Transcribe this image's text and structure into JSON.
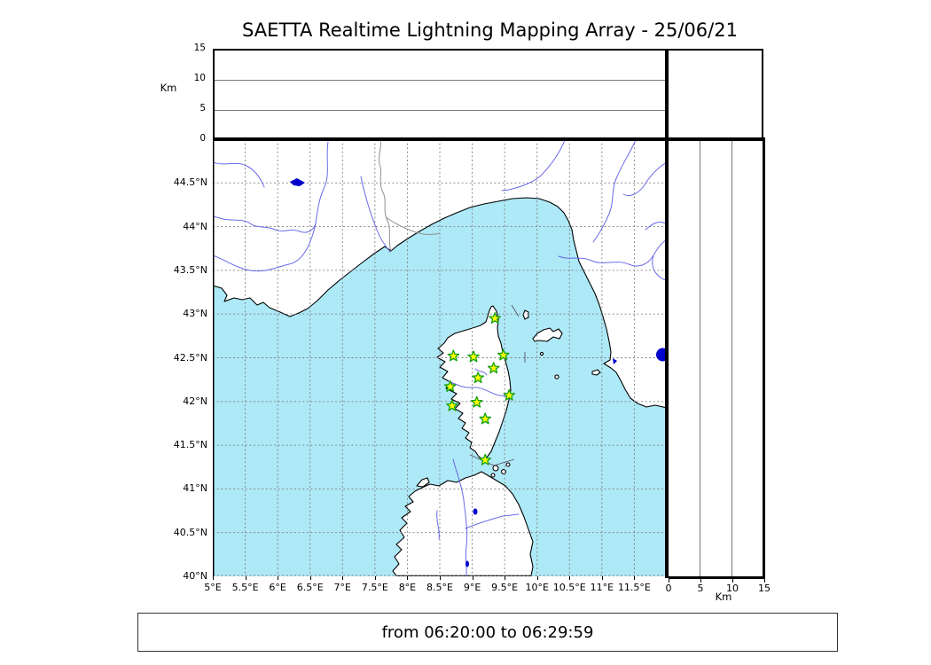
{
  "title": "SAETTA Realtime Lightning Mapping Array - 25/06/21",
  "footer": {
    "time_range": "from 06:20:00 to 06:29:59"
  },
  "altitude_panel": {
    "axis_label": "Km",
    "ticks": [
      0,
      5,
      10,
      15
    ],
    "max_km": 15
  },
  "right_panel": {
    "axis_label": "Km",
    "ticks": [
      0,
      5,
      10,
      15
    ],
    "max_km": 15
  },
  "map": {
    "lat_ticks": [
      "44.5°N",
      "44°N",
      "43.5°N",
      "43°N",
      "42.5°N",
      "42°N",
      "41.5°N",
      "41°N",
      "40.5°N",
      "40°N"
    ],
    "lon_ticks": [
      "5°E",
      "5.5°E",
      "6°E",
      "6.5°E",
      "7°E",
      "7.5°E",
      "8°E",
      "8.5°E",
      "9°E",
      "9.5°E",
      "10°E",
      "10.5°E",
      "11°E",
      "11.5°E"
    ],
    "lon_range_deg": [
      5,
      12
    ],
    "lat_range_deg": [
      40,
      45
    ],
    "stations": [
      {
        "lon": 9.35,
        "lat": 42.95
      },
      {
        "lon": 8.71,
        "lat": 42.52
      },
      {
        "lon": 9.02,
        "lat": 42.51
      },
      {
        "lon": 9.48,
        "lat": 42.53
      },
      {
        "lon": 9.33,
        "lat": 42.38
      },
      {
        "lon": 9.09,
        "lat": 42.27
      },
      {
        "lon": 8.66,
        "lat": 42.17
      },
      {
        "lon": 9.57,
        "lat": 42.07
      },
      {
        "lon": 9.07,
        "lat": 41.99
      },
      {
        "lon": 8.69,
        "lat": 41.95
      },
      {
        "lon": 9.2,
        "lat": 41.8
      },
      {
        "lon": 9.2,
        "lat": 41.33
      }
    ],
    "colors": {
      "sea": "#aee9f7",
      "land": "#ffffff",
      "coastline": "#000000",
      "river": "#6a6ae8",
      "lake": "#0000cc",
      "grid": "#808080",
      "country_border": "#909090",
      "station_fill": "#ffff00",
      "station_stroke": "#11a011"
    }
  }
}
